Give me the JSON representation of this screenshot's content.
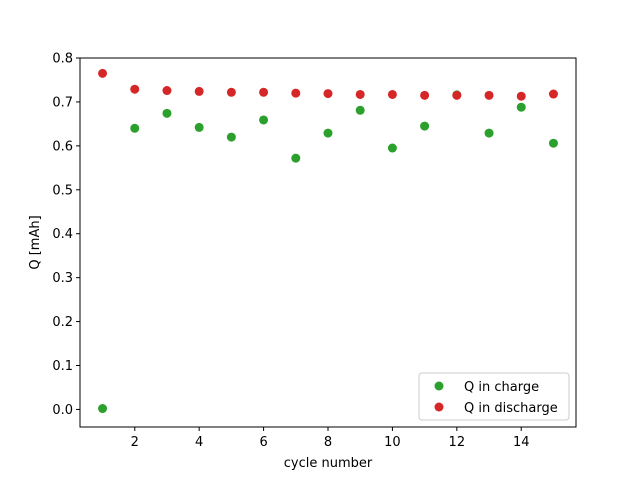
{
  "chart_data": {
    "type": "scatter",
    "title": "",
    "xlabel": "cycle number",
    "ylabel": "Q [mAh]",
    "xlim": [
      0.3,
      15.7
    ],
    "ylim": [
      -0.04,
      0.8
    ],
    "xticks": [
      2,
      4,
      6,
      8,
      10,
      12,
      14
    ],
    "xtick_labels": [
      "2",
      "4",
      "6",
      "8",
      "10",
      "12",
      "14"
    ],
    "yticks": [
      0.0,
      0.1,
      0.2,
      0.3,
      0.4,
      0.5,
      0.6,
      0.7,
      0.8
    ],
    "ytick_labels": [
      "0.0",
      "0.1",
      "0.2",
      "0.3",
      "0.4",
      "0.5",
      "0.6",
      "0.7",
      "0.8"
    ],
    "grid": false,
    "legend_position": "lower-right",
    "series": [
      {
        "name": "Q in charge",
        "color": "#2ca02c",
        "x": [
          1,
          2,
          3,
          4,
          5,
          6,
          7,
          8,
          9,
          10,
          11,
          12,
          13,
          14,
          15
        ],
        "y": [
          0.002,
          0.64,
          0.674,
          0.642,
          0.62,
          0.659,
          0.572,
          0.629,
          0.681,
          0.595,
          0.645,
          0.716,
          0.629,
          0.688,
          0.606
        ]
      },
      {
        "name": "Q in discharge",
        "color": "#d62728",
        "x": [
          1,
          2,
          3,
          4,
          5,
          6,
          7,
          8,
          9,
          10,
          11,
          12,
          13,
          14,
          15
        ],
        "y": [
          0.765,
          0.729,
          0.726,
          0.724,
          0.722,
          0.722,
          0.72,
          0.719,
          0.717,
          0.717,
          0.715,
          0.715,
          0.715,
          0.713,
          0.718
        ]
      }
    ]
  }
}
